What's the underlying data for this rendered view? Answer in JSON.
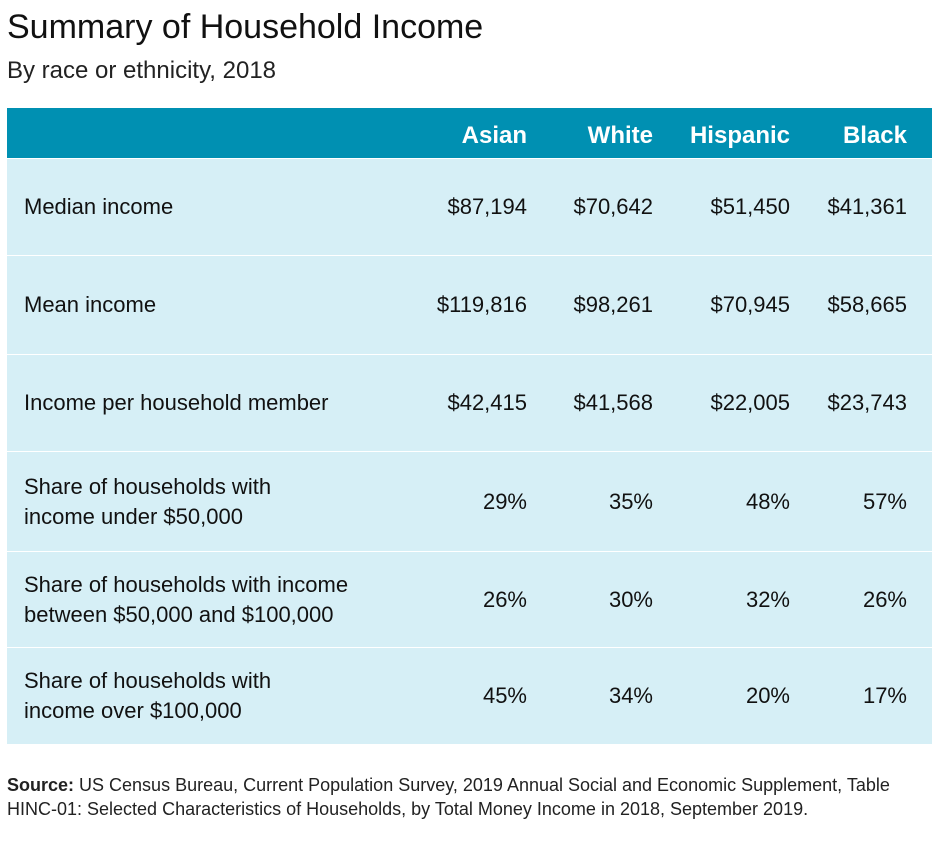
{
  "chart_data": {
    "type": "table",
    "title": "Summary of Household Income",
    "subtitle": "By race or ethnicity, 2018",
    "columns": [
      "Asian",
      "White",
      "Hispanic",
      "Black"
    ],
    "rows": [
      {
        "label": "Median income",
        "values": [
          "$87,194",
          "$70,642",
          "$51,450",
          "$41,361"
        ]
      },
      {
        "label": "Mean income",
        "values": [
          "$119,816",
          "$98,261",
          "$70,945",
          "$58,665"
        ]
      },
      {
        "label": "Income per household member",
        "values": [
          "$42,415",
          "$41,568",
          "$22,005",
          "$23,743"
        ]
      },
      {
        "label": "Share of households with\nincome under $50,000",
        "values": [
          "29%",
          "35%",
          "48%",
          "57%"
        ]
      },
      {
        "label": "Share of households with income\nbetween $50,000 and $100,000",
        "values": [
          "26%",
          "30%",
          "32%",
          "26%"
        ]
      },
      {
        "label": "Share of households with\nincome over $100,000",
        "values": [
          "45%",
          "34%",
          "20%",
          "17%"
        ]
      }
    ],
    "source_label": "Source:",
    "source_text": " US Census Bureau, Current Population Survey, 2019 Annual Social and Economic Supplement, Table HINC-01: Selected Characteristics of Households, by Total Money Income in 2018, September 2019."
  },
  "colors": {
    "header_bg": "#0090b2",
    "body_bg": "#d6eff6",
    "header_text": "#ffffff"
  }
}
